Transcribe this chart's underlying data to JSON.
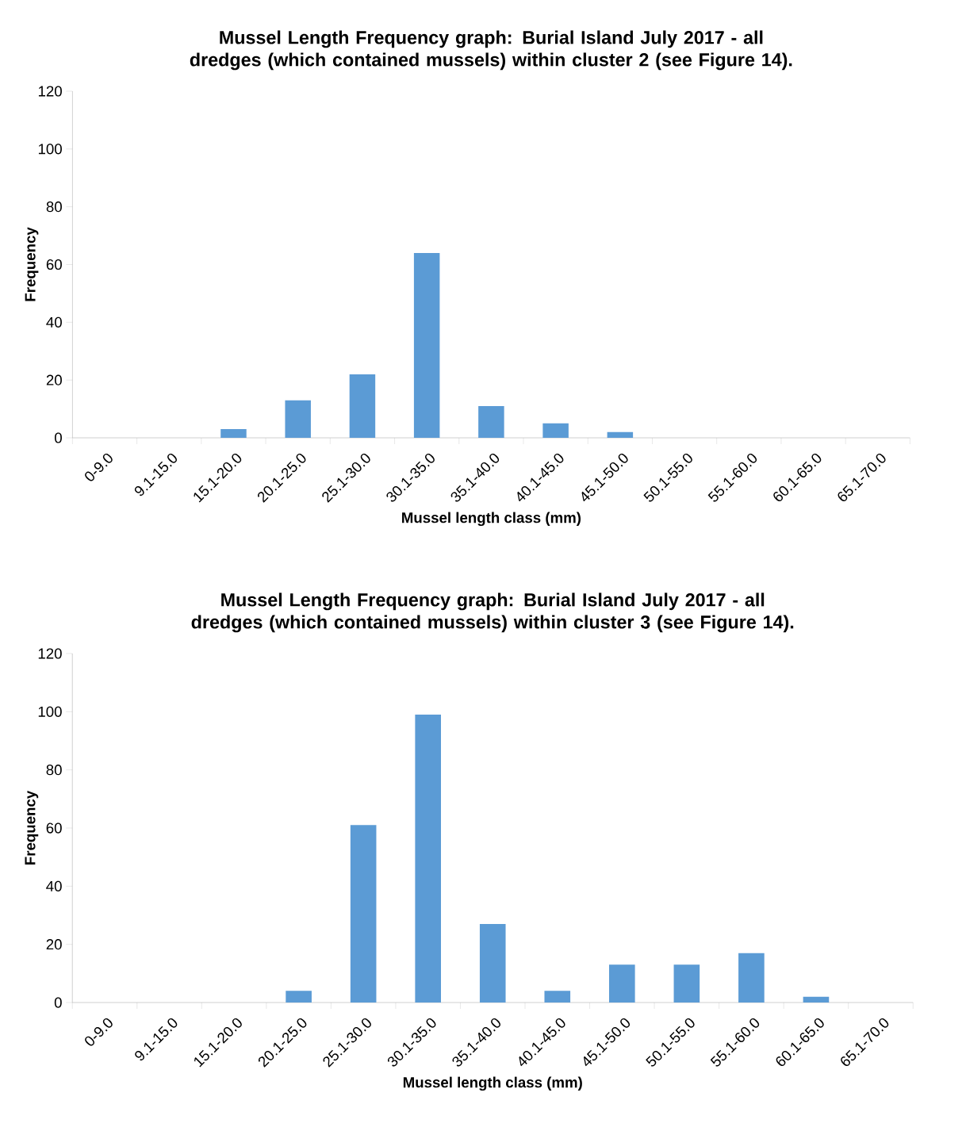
{
  "chart_data": [
    {
      "type": "bar",
      "title": "Mussel Length Frequency graph: Burial Island July 2017 -  all dredges (which contained mussels) within cluster 2 (see Figure 14).",
      "xlabel": "Mussel length class (mm)",
      "ylabel": "Frequency",
      "categories": [
        "0-9.0",
        "9.1-15.0",
        "15.1-20.0",
        "20.1-25.0",
        "25.1-30.0",
        "30.1-35.0",
        "35.1-40.0",
        "40.1-45.0",
        "45.1-50.0",
        "50.1-55.0",
        "55.1-60.0",
        "60.1-65.0",
        "65.1-70.0"
      ],
      "values": [
        0,
        0,
        3,
        13,
        22,
        64,
        11,
        5,
        2,
        0,
        0,
        0,
        0
      ],
      "color": "#5b9bd5",
      "ylim": [
        0,
        120
      ],
      "yticks": [
        0,
        20,
        40,
        60,
        80,
        100,
        120
      ]
    },
    {
      "type": "bar",
      "title": "Mussel Length Frequency graph: Burial Island July 2017 -  all dredges (which contained mussels) within cluster 3 (see Figure 14).",
      "xlabel": "Mussel length class (mm)",
      "ylabel": "Frequency",
      "categories": [
        "0-9.0",
        "9.1-15.0",
        "15.1-20.0",
        "20.1-25.0",
        "25.1-30.0",
        "30.1-35.0",
        "35.1-40.0",
        "40.1-45.0",
        "45.1-50.0",
        "50.1-55.0",
        "55.1-60.0",
        "60.1-65.0",
        "65.1-70.0"
      ],
      "values": [
        0,
        0,
        0,
        4,
        61,
        99,
        27,
        4,
        13,
        13,
        17,
        2,
        0
      ],
      "color": "#5b9bd5",
      "ylim": [
        0,
        120
      ],
      "yticks": [
        0,
        20,
        40,
        60,
        80,
        100,
        120
      ]
    }
  ]
}
